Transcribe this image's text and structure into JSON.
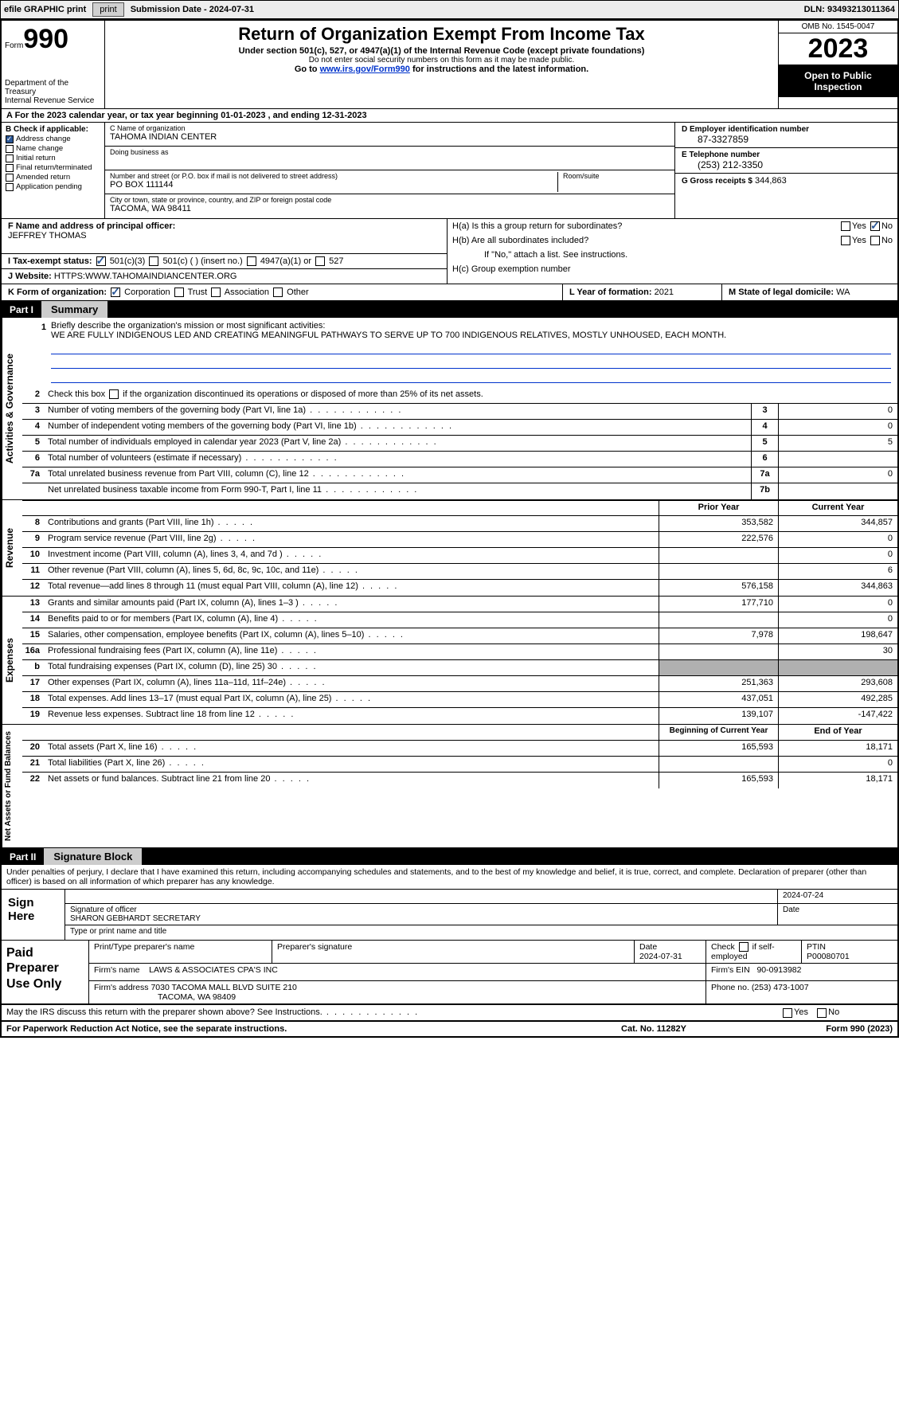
{
  "topbar": {
    "efile": "efile GRAPHIC print",
    "submission": "Submission Date - 2024-07-31",
    "dln": "DLN: 93493213011364"
  },
  "header": {
    "form_word": "Form",
    "form_num": "990",
    "title": "Return of Organization Exempt From Income Tax",
    "sub": "Under section 501(c), 527, or 4947(a)(1) of the Internal Revenue Code (except private foundations)",
    "note": "Do not enter social security numbers on this form as it may be made public.",
    "goto_pre": "Go to ",
    "goto_link": "www.irs.gov/Form990",
    "goto_post": " for instructions and the latest information.",
    "dept": "Department of the Treasury\nInternal Revenue Service",
    "omb": "OMB No. 1545-0047",
    "year": "2023",
    "open": "Open to Public Inspection"
  },
  "period": "A  For the 2023 calendar year, or tax year beginning 01-01-2023   , and ending 12-31-2023",
  "boxB": {
    "hdr": "B Check if applicable:",
    "items": [
      {
        "label": "Address change",
        "checked": true
      },
      {
        "label": "Name change",
        "checked": false
      },
      {
        "label": "Initial return",
        "checked": false
      },
      {
        "label": "Final return/terminated",
        "checked": false
      },
      {
        "label": "Amended return",
        "checked": false
      },
      {
        "label": "Application pending",
        "checked": false
      }
    ]
  },
  "boxC": {
    "name_label": "C Name of organization",
    "name": "TAHOMA INDIAN CENTER",
    "dba_label": "Doing business as",
    "dba": "",
    "street_label": "Number and street (or P.O. box if mail is not delivered to street address)",
    "street": "PO BOX 111144",
    "suite_label": "Room/suite",
    "suite": "",
    "city_label": "City or town, state or province, country, and ZIP or foreign postal code",
    "city": "TACOMA, WA  98411"
  },
  "boxD": {
    "ein_label": "D Employer identification number",
    "ein": "87-3327859",
    "phone_label": "E Telephone number",
    "phone": "(253) 212-3350",
    "gross_label": "G Gross receipts $",
    "gross": "344,863"
  },
  "boxF": {
    "label": "F  Name and address of principal officer:",
    "name": "JEFFREY THOMAS"
  },
  "boxH": {
    "a_label": "H(a)  Is this a group return for subordinates?",
    "b_label": "H(b)  Are all subordinates included?",
    "b_note": "If \"No,\" attach a list. See instructions.",
    "c_label": "H(c)  Group exemption number"
  },
  "boxI": {
    "label": "I  Tax-exempt status:",
    "opts": [
      "501(c)(3)",
      "501(c) (  ) (insert no.)",
      "4947(a)(1) or",
      "527"
    ]
  },
  "boxJ": {
    "label": "J  Website:",
    "val": "HTTPS:WWW.TAHOMAINDIANCENTER.ORG"
  },
  "boxK": {
    "label": "K Form of organization:",
    "opts": [
      "Corporation",
      "Trust",
      "Association",
      "Other"
    ]
  },
  "boxL": {
    "label": "L Year of formation:",
    "val": "2021"
  },
  "boxM": {
    "label": "M State of legal domicile:",
    "val": "WA"
  },
  "part1": {
    "label": "Part I",
    "title": "Summary"
  },
  "sections": {
    "gov": "Activities & Governance",
    "rev": "Revenue",
    "exp": "Expenses",
    "net": "Net Assets or Fund Balances"
  },
  "mission_label": "Briefly describe the organization's mission or most significant activities:",
  "mission": "WE ARE FULLY INDIGENOUS LED AND CREATING MEANINGFUL PATHWAYS TO SERVE UP TO 700 INDIGENOUS RELATIVES, MOSTLY UNHOUSED, EACH MONTH.",
  "line2": "Check this box       if the organization discontinued its operations or disposed of more than 25% of its net assets.",
  "gov_lines": [
    {
      "n": "3",
      "d": "Number of voting members of the governing body (Part VI, line 1a)",
      "box": "3",
      "v": "0"
    },
    {
      "n": "4",
      "d": "Number of independent voting members of the governing body (Part VI, line 1b)",
      "box": "4",
      "v": "0"
    },
    {
      "n": "5",
      "d": "Total number of individuals employed in calendar year 2023 (Part V, line 2a)",
      "box": "5",
      "v": "5"
    },
    {
      "n": "6",
      "d": "Total number of volunteers (estimate if necessary)",
      "box": "6",
      "v": ""
    },
    {
      "n": "7a",
      "d": "Total unrelated business revenue from Part VIII, column (C), line 12",
      "box": "7a",
      "v": "0"
    },
    {
      "n": "",
      "d": "Net unrelated business taxable income from Form 990-T, Part I, line 11",
      "box": "7b",
      "v": ""
    }
  ],
  "col_hdrs": {
    "prior": "Prior Year",
    "current": "Current Year",
    "beg": "Beginning of Current Year",
    "end": "End of Year"
  },
  "rev_lines": [
    {
      "n": "8",
      "d": "Contributions and grants (Part VIII, line 1h)",
      "p": "353,582",
      "c": "344,857"
    },
    {
      "n": "9",
      "d": "Program service revenue (Part VIII, line 2g)",
      "p": "222,576",
      "c": "0"
    },
    {
      "n": "10",
      "d": "Investment income (Part VIII, column (A), lines 3, 4, and 7d )",
      "p": "",
      "c": "0"
    },
    {
      "n": "11",
      "d": "Other revenue (Part VIII, column (A), lines 5, 6d, 8c, 9c, 10c, and 11e)",
      "p": "",
      "c": "6"
    },
    {
      "n": "12",
      "d": "Total revenue—add lines 8 through 11 (must equal Part VIII, column (A), line 12)",
      "p": "576,158",
      "c": "344,863"
    }
  ],
  "exp_lines": [
    {
      "n": "13",
      "d": "Grants and similar amounts paid (Part IX, column (A), lines 1–3 )",
      "p": "177,710",
      "c": "0"
    },
    {
      "n": "14",
      "d": "Benefits paid to or for members (Part IX, column (A), line 4)",
      "p": "",
      "c": "0"
    },
    {
      "n": "15",
      "d": "Salaries, other compensation, employee benefits (Part IX, column (A), lines 5–10)",
      "p": "7,978",
      "c": "198,647"
    },
    {
      "n": "16a",
      "d": "Professional fundraising fees (Part IX, column (A), line 11e)",
      "p": "",
      "c": "30"
    },
    {
      "n": "b",
      "d": "Total fundraising expenses (Part IX, column (D), line 25) 30",
      "p": "SHADE",
      "c": "SHADE"
    },
    {
      "n": "17",
      "d": "Other expenses (Part IX, column (A), lines 11a–11d, 11f–24e)",
      "p": "251,363",
      "c": "293,608"
    },
    {
      "n": "18",
      "d": "Total expenses. Add lines 13–17 (must equal Part IX, column (A), line 25)",
      "p": "437,051",
      "c": "492,285"
    },
    {
      "n": "19",
      "d": "Revenue less expenses. Subtract line 18 from line 12",
      "p": "139,107",
      "c": "-147,422"
    }
  ],
  "net_lines": [
    {
      "n": "20",
      "d": "Total assets (Part X, line 16)",
      "p": "165,593",
      "c": "18,171"
    },
    {
      "n": "21",
      "d": "Total liabilities (Part X, line 26)",
      "p": "",
      "c": "0"
    },
    {
      "n": "22",
      "d": "Net assets or fund balances. Subtract line 21 from line 20",
      "p": "165,593",
      "c": "18,171"
    }
  ],
  "part2": {
    "label": "Part II",
    "title": "Signature Block"
  },
  "perjury": "Under penalties of perjury, I declare that I have examined this return, including accompanying schedules and statements, and to the best of my knowledge and belief, it is true, correct, and complete. Declaration of preparer (other than officer) is based on all information of which preparer has any knowledge.",
  "sign": {
    "here": "Sign Here",
    "sig_label": "Signature of officer",
    "officer": "SHARON GEBHARDT SECRETARY",
    "name_label": "Type or print name and title",
    "date_label": "Date",
    "date": "2024-07-24"
  },
  "paid": {
    "title": "Paid Preparer Use Only",
    "r1": {
      "c1_label": "Print/Type preparer's name",
      "c1": "",
      "c2_label": "Preparer's signature",
      "c2": "",
      "c3_label": "Date",
      "c3": "2024-07-31",
      "c4_label": "Check       if self-employed",
      "c5_label": "PTIN",
      "c5": "P00080701"
    },
    "r2": {
      "label": "Firm's name",
      "val": "LAWS & ASSOCIATES CPA'S INC",
      "ein_label": "Firm's EIN",
      "ein": "90-0913982"
    },
    "r3": {
      "label": "Firm's address",
      "val1": "7030 TACOMA MALL BLVD SUITE 210",
      "val2": "TACOMA, WA  98409",
      "ph_label": "Phone no.",
      "ph": "(253) 473-1007"
    }
  },
  "discuss": "May the IRS discuss this return with the preparer shown above? See Instructions.",
  "footer": {
    "left": "For Paperwork Reduction Act Notice, see the separate instructions.",
    "mid": "Cat. No. 11282Y",
    "right_pre": "Form ",
    "right_b": "990",
    "right_post": " (2023)"
  }
}
